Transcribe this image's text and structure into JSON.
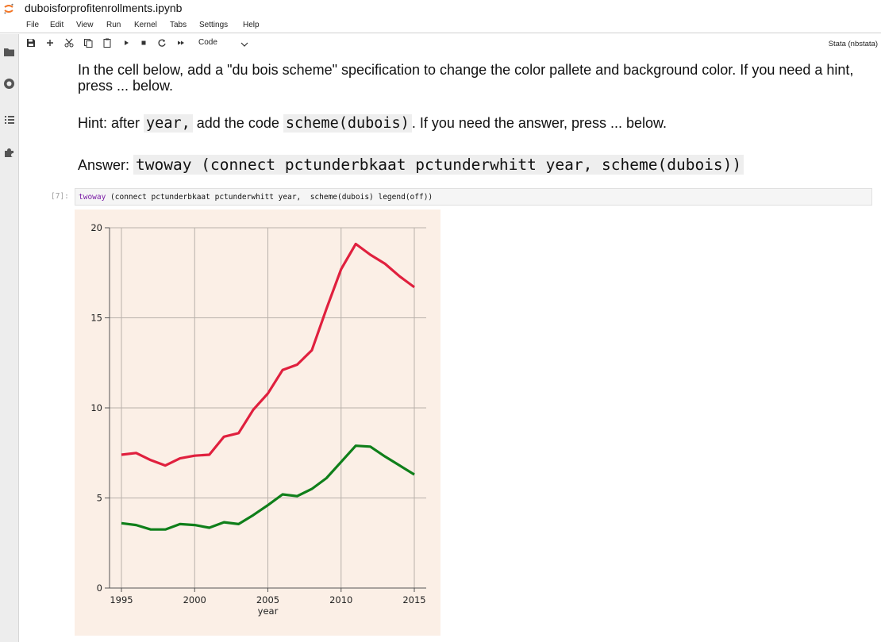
{
  "notebook": {
    "title": "duboisforprofitenrollments.ipynb"
  },
  "menu": [
    "File",
    "Edit",
    "View",
    "Run",
    "Kernel",
    "Tabs",
    "Settings",
    "Help"
  ],
  "toolbar": {
    "cell_type": "Code",
    "kernel": "Stata (nbstata)",
    "icons": [
      "save-icon",
      "add-icon",
      "cut-icon",
      "copy-icon",
      "paste-icon",
      "run-icon",
      "stop-icon",
      "restart-icon",
      "fast-forward-icon"
    ]
  },
  "sidebar": {
    "icons": [
      "folder-icon",
      "running-icon",
      "toc-icon",
      "extension-icon"
    ]
  },
  "markdown": {
    "instruction": "In the cell below, add a \"du bois scheme\" specification to change the color pallete and background color. If you need a hint, press ... below.",
    "hint_prefix": "Hint: after",
    "hint_code1": "year,",
    "hint_mid": "add the code",
    "hint_code2": "scheme(dubois)",
    "hint_suffix": ". If you need the answer, press ... below.",
    "answer_prefix": "Answer:",
    "answer_code": "twoway (connect pctunderbkaat pctunderwhitt year, scheme(dubois))"
  },
  "cell": {
    "prompt": "[7]:",
    "code_keyword": "twoway",
    "code_rest": " (connect pctunderbkaat pctunderwhitt year,  scheme(dubois) legend(off))"
  },
  "chart_data": {
    "type": "line",
    "xlabel": "year",
    "ylabel": "",
    "xlim": [
      1995,
      2015
    ],
    "ylim": [
      0,
      20
    ],
    "xticks": [
      1995,
      2000,
      2005,
      2010,
      2015
    ],
    "yticks": [
      0,
      5,
      10,
      15,
      20
    ],
    "grid": true,
    "legend": "off",
    "x": [
      1995,
      1996,
      1997,
      1998,
      1999,
      2000,
      2001,
      2002,
      2003,
      2004,
      2005,
      2006,
      2007,
      2008,
      2009,
      2010,
      2011,
      2012,
      2013,
      2014,
      2015
    ],
    "series": [
      {
        "color": "#e0203e",
        "values": [
          7.4,
          7.5,
          7.1,
          6.8,
          7.2,
          7.35,
          7.4,
          8.4,
          8.6,
          9.9,
          10.8,
          12.1,
          12.4,
          13.2,
          15.5,
          17.7,
          19.1,
          18.5,
          18.0,
          17.3,
          16.7
        ]
      },
      {
        "color": "#0f7f1a",
        "values": [
          3.6,
          3.5,
          3.25,
          3.25,
          3.55,
          3.5,
          3.35,
          3.65,
          3.55,
          4.05,
          4.6,
          5.2,
          5.1,
          5.5,
          6.1,
          7.0,
          7.9,
          7.85,
          7.3,
          6.8,
          6.3
        ]
      }
    ]
  }
}
